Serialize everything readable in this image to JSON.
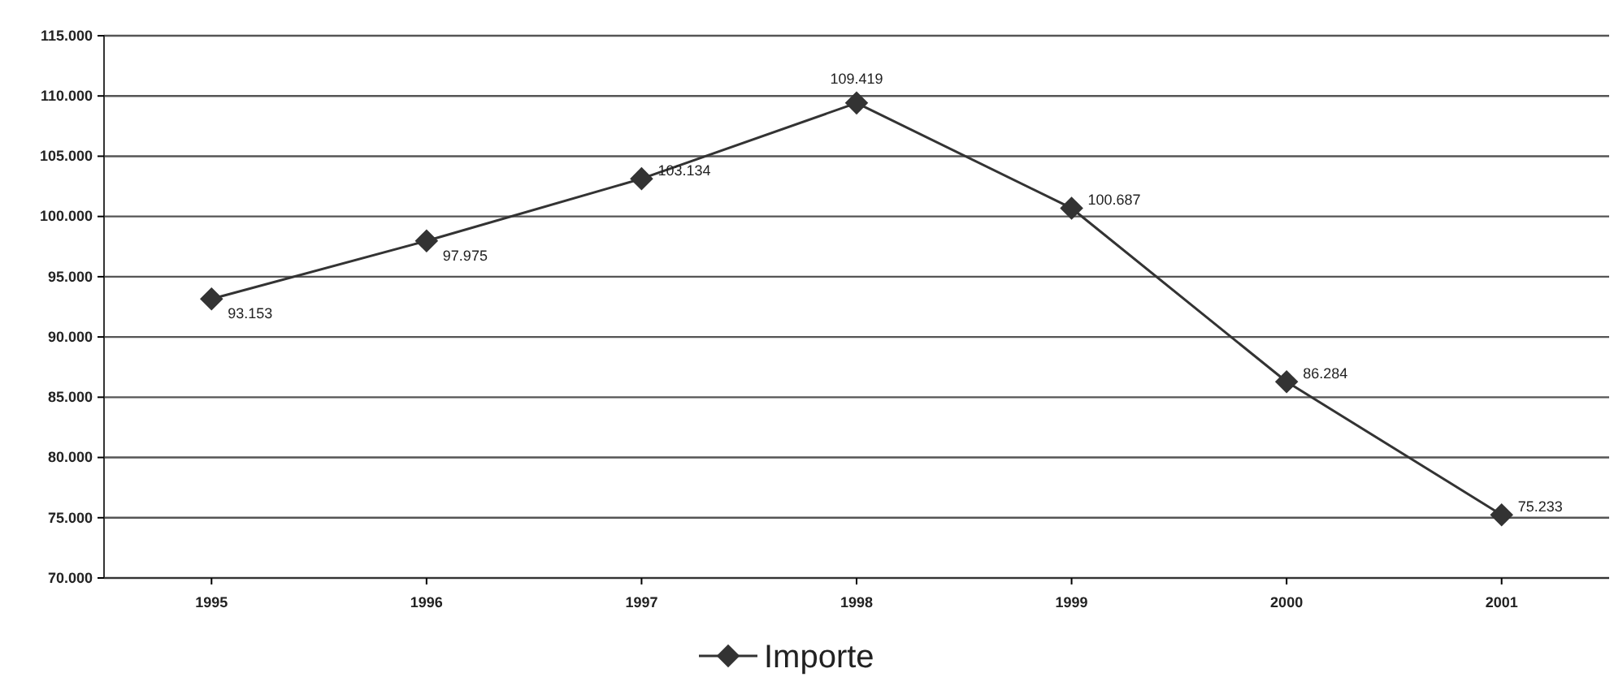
{
  "chart_data": {
    "type": "line",
    "categories": [
      "1995",
      "1996",
      "1997",
      "1998",
      "1999",
      "2000",
      "2001"
    ],
    "series": [
      {
        "name": "Importe",
        "color": "#333333",
        "values": [
          93153,
          97975,
          103134,
          109419,
          100687,
          86284,
          75233
        ],
        "value_labels": [
          "93.153",
          "97.975",
          "103.134",
          "109.419",
          "100.687",
          "86.284",
          "75.233"
        ]
      }
    ],
    "ylim": [
      70000,
      115000
    ],
    "yticks": [
      {
        "value": 70000,
        "label": "70.000"
      },
      {
        "value": 75000,
        "label": "75.000"
      },
      {
        "value": 80000,
        "label": "80.000"
      },
      {
        "value": 85000,
        "label": "85.000"
      },
      {
        "value": 90000,
        "label": "90.000"
      },
      {
        "value": 95000,
        "label": "95.000"
      },
      {
        "value": 100000,
        "label": "100.000"
      },
      {
        "value": 105000,
        "label": "105.000"
      },
      {
        "value": 110000,
        "label": "110.000"
      },
      {
        "value": 115000,
        "label": "115.000"
      }
    ],
    "grid": "y",
    "legend": "bottom",
    "marker": "diamond",
    "line_style": "solid"
  }
}
